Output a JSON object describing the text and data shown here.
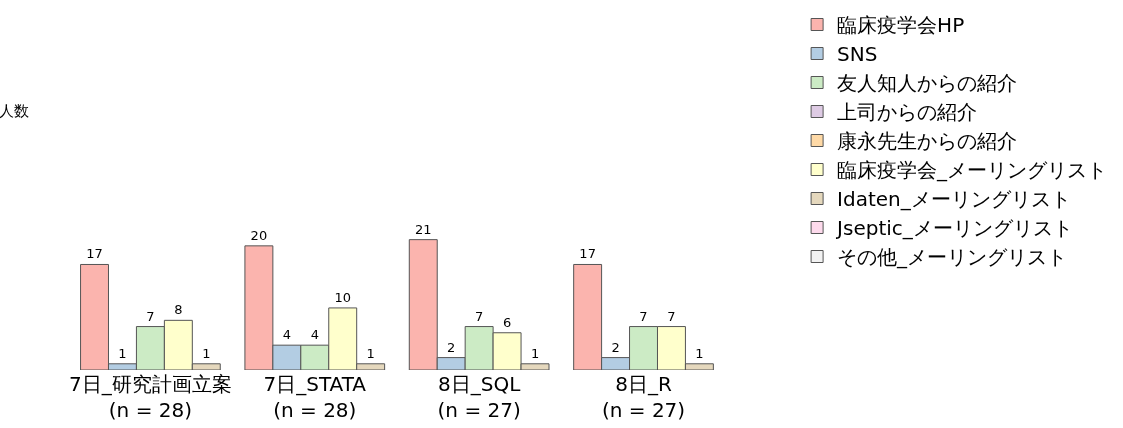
{
  "chart_data": {
    "type": "bar",
    "annotations": [
      "人数"
    ],
    "categories": [
      "7日_研究計画立案\n(n = 28)",
      "7日_STATA\n(n = 28)",
      "8日_SQL\n(n = 27)",
      "8日_R\n(n = 27)"
    ],
    "series": [
      {
        "name": "臨床疫学会HP",
        "color": "#fbb4ae",
        "values": [
          17,
          20,
          21,
          17
        ]
      },
      {
        "name": "SNS",
        "color": "#b3cde3",
        "values": [
          1,
          4,
          2,
          2
        ]
      },
      {
        "name": "友人知人からの紹介",
        "color": "#ccebc5",
        "values": [
          7,
          4,
          7,
          7
        ]
      },
      {
        "name": "上司からの紹介",
        "color": "#decbe4",
        "values": [
          null,
          null,
          null,
          null
        ]
      },
      {
        "name": "康永先生からの紹介",
        "color": "#fed9a6",
        "values": [
          null,
          null,
          null,
          null
        ]
      },
      {
        "name": "臨床疫学会_メーリングリスト",
        "color": "#ffffcc",
        "values": [
          8,
          10,
          6,
          7
        ]
      },
      {
        "name": "Idaten_メーリングリスト",
        "color": "#e5d8bd",
        "values": [
          1,
          1,
          1,
          1
        ]
      },
      {
        "name": "Jseptic_メーリングリスト",
        "color": "#fddaec",
        "values": [
          null,
          null,
          null,
          null
        ]
      },
      {
        "name": "その他_メーリングリスト",
        "color": "#f2f2f2",
        "values": [
          null,
          null,
          null,
          null
        ]
      }
    ],
    "data_labels": true,
    "legend": "top right"
  }
}
